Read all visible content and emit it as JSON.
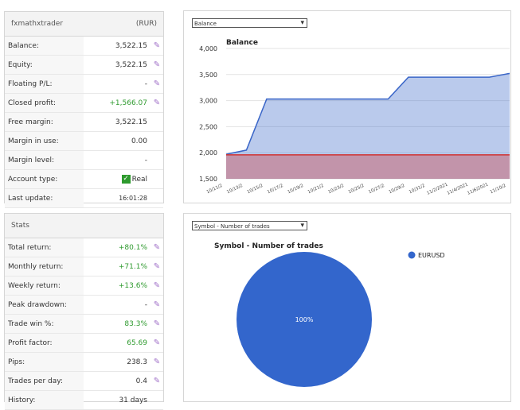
{
  "account": {
    "name": "fxmathxtrader",
    "currency": "(RUR)",
    "rows": [
      {
        "label": "Balance:",
        "value": "3,522.15",
        "editable": true
      },
      {
        "label": "Equity:",
        "value": "3,522.15",
        "editable": true
      },
      {
        "label": "Floating P/L:",
        "value": "-",
        "editable": true
      },
      {
        "label": "Closed profit:",
        "value": "+1,566.07",
        "editable": true,
        "color": "#2e9a2e"
      },
      {
        "label": "Free margin:",
        "value": "3,522.15"
      },
      {
        "label": "Margin in use:",
        "value": "0.00"
      },
      {
        "label": "Margin level:",
        "value": "-"
      },
      {
        "label": "Account type:",
        "value": "Real",
        "check": true
      },
      {
        "label": "Last update:",
        "value": "16:01:28",
        "small": true
      }
    ]
  },
  "stats": {
    "title": "Stats",
    "rows": [
      {
        "label": "Total return:",
        "value": "+80.1%",
        "editable": true,
        "color": "#2e9a2e"
      },
      {
        "label": "Monthly return:",
        "value": "+71.1%",
        "editable": true,
        "color": "#2e9a2e"
      },
      {
        "label": "Weekly return:",
        "value": "+13.6%",
        "editable": true,
        "color": "#2e9a2e"
      },
      {
        "label": "Peak drawdown:",
        "value": "-",
        "editable": true
      },
      {
        "label": "Trade win %:",
        "value": "83.3%",
        "editable": true,
        "color": "#2e9a2e"
      },
      {
        "label": "Profit factor:",
        "value": "65.69",
        "editable": true,
        "color": "#2e9a2e"
      },
      {
        "label": "Pips:",
        "value": "238.3",
        "editable": true
      },
      {
        "label": "Trades per day:",
        "value": "0.4",
        "editable": true
      },
      {
        "label": "History:",
        "value": "31 days"
      }
    ]
  },
  "chart_data": [
    {
      "type": "area",
      "selector": "Balance",
      "title": "Balance",
      "categories": [
        "10/11/2",
        "10/13/2",
        "10/15/2",
        "10/17/2",
        "10/19/2",
        "10/21/2",
        "10/23/2",
        "10/25/2",
        "10/27/2",
        "10/29/2",
        "10/31/2",
        "11/2/2021",
        "11/4/2021",
        "11/6/2021",
        "11/10/2"
      ],
      "series": [
        {
          "color": "#3a66c8",
          "values": [
            1970,
            2050,
            3030,
            3030,
            3030,
            3030,
            3030,
            3030,
            3030,
            3450,
            3450,
            3450,
            3450,
            3450,
            3522
          ]
        },
        {
          "color": "#d03030",
          "values": [
            1960,
            1960,
            1960,
            1960,
            1960,
            1960,
            1960,
            1960,
            1960,
            1960,
            1960,
            1960,
            1960,
            1960,
            1960
          ]
        }
      ],
      "ylim": [
        1500,
        4000
      ],
      "yticks": [
        {
          "value": 1500,
          "label": "1,500"
        },
        {
          "value": 2000,
          "label": "2,000"
        },
        {
          "value": 2500,
          "label": "2,500"
        },
        {
          "value": 3000,
          "label": "3,000"
        },
        {
          "value": 3500,
          "label": "3,500"
        },
        {
          "value": 4000,
          "label": "4,000"
        }
      ],
      "grid": true
    },
    {
      "type": "pie",
      "selector": "Symbol - Number of trades",
      "title": "Symbol - Number of trades",
      "categories": [
        "EURUSD"
      ],
      "values": [
        100
      ],
      "value_labels": [
        "100%"
      ],
      "colors": [
        "#3366cc"
      ],
      "legend": "top-right"
    }
  ]
}
